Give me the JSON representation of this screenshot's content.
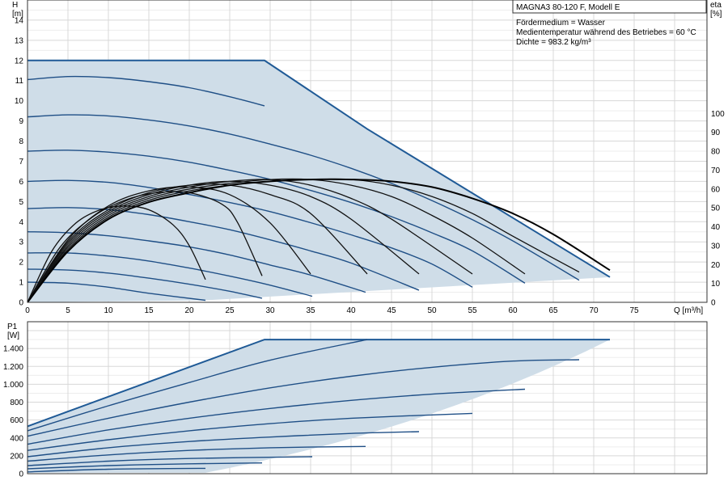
{
  "chart_data": [
    {
      "type": "line",
      "title": "MAGNA3 80-120 F, Modell E",
      "annotations": [
        "Fördermedium = Wasser",
        "Medientemperatur während des Betriebes = 60 °C",
        "Dichte = 983.2 kg/m³"
      ],
      "y_title": "H",
      "y_unit": "[m]",
      "y2_title": "eta",
      "y2_unit": "[%]",
      "x_label": "Q [m³/h]",
      "xlim": [
        0,
        84
      ],
      "ylim": [
        0,
        15
      ],
      "y2lim": [
        0,
        160
      ],
      "xticks": [
        0,
        5,
        10,
        15,
        20,
        25,
        30,
        35,
        40,
        45,
        50,
        55,
        60,
        65,
        70,
        75
      ],
      "yticks": [
        0,
        1,
        2,
        3,
        4,
        5,
        6,
        7,
        8,
        9,
        10,
        11,
        12,
        13,
        14
      ],
      "y2ticks": [
        0,
        10,
        20,
        30,
        40,
        50,
        60,
        70,
        80,
        90,
        100
      ],
      "grid": true,
      "envelope": [
        [
          0,
          12
        ],
        [
          29.3,
          12
        ],
        [
          42,
          8.6
        ],
        [
          72,
          1.25
        ],
        [
          22,
          0.1
        ],
        [
          0,
          0
        ]
      ],
      "series": [
        {
          "x": [
            0,
            5,
            10,
            15,
            22
          ],
          "y": [
            1.0,
            0.95,
            0.75,
            0.45,
            0.1
          ]
        },
        {
          "x": [
            0,
            5,
            10,
            15,
            20,
            25,
            29
          ],
          "y": [
            1.65,
            1.6,
            1.45,
            1.2,
            0.9,
            0.55,
            0.2
          ]
        },
        {
          "x": [
            0,
            5,
            10,
            15,
            20,
            25,
            30,
            35.2
          ],
          "y": [
            2.45,
            2.45,
            2.3,
            2.05,
            1.7,
            1.3,
            0.85,
            0.3
          ]
        },
        {
          "x": [
            0,
            5,
            10,
            15,
            20,
            25,
            30,
            35,
            41.8
          ],
          "y": [
            3.5,
            3.45,
            3.3,
            3.05,
            2.75,
            2.35,
            1.85,
            1.35,
            0.5
          ]
        },
        {
          "x": [
            0,
            5,
            10,
            15,
            20,
            25,
            30,
            35,
            40,
            48.4
          ],
          "y": [
            4.65,
            4.7,
            4.6,
            4.35,
            4.0,
            3.6,
            3.1,
            2.55,
            1.95,
            0.6
          ]
        },
        {
          "x": [
            0,
            5,
            10,
            15,
            20,
            25,
            30,
            35,
            40,
            45,
            50,
            55
          ],
          "y": [
            6.0,
            6.05,
            5.95,
            5.7,
            5.35,
            4.95,
            4.5,
            3.95,
            3.35,
            2.7,
            1.9,
            0.75
          ]
        },
        {
          "x": [
            0,
            5,
            10,
            15,
            20,
            25,
            30,
            35,
            40,
            45,
            50,
            55,
            61.5
          ],
          "y": [
            7.5,
            7.55,
            7.45,
            7.25,
            6.95,
            6.55,
            6.1,
            5.55,
            4.95,
            4.25,
            3.45,
            2.55,
            0.95
          ]
        },
        {
          "x": [
            0,
            5,
            10,
            15,
            20,
            25,
            30,
            35,
            40,
            45,
            50,
            55,
            60,
            68.2
          ],
          "y": [
            9.2,
            9.3,
            9.25,
            9.05,
            8.75,
            8.35,
            7.85,
            7.3,
            6.65,
            5.9,
            5.05,
            4.1,
            3.05,
            1.1
          ]
        },
        {
          "x": [
            0,
            5,
            10,
            15,
            20,
            25,
            29.3
          ],
          "y": [
            11.05,
            11.2,
            11.15,
            10.95,
            10.65,
            10.2,
            9.75
          ]
        }
      ],
      "efficiency_series": [
        {
          "x": [
            0,
            3,
            6,
            9,
            12,
            15,
            18,
            20,
            22
          ],
          "y": [
            0,
            27,
            42,
            49,
            51,
            49,
            41,
            30,
            12
          ]
        },
        {
          "x": [
            0,
            4,
            8,
            12,
            16,
            20,
            24,
            26,
            29
          ],
          "y": [
            0,
            29,
            45,
            54,
            58,
            58,
            52,
            42,
            14
          ]
        },
        {
          "x": [
            0,
            5,
            10,
            15,
            20,
            25,
            30,
            35
          ],
          "y": [
            0,
            33,
            51,
            59,
            61,
            57,
            42,
            15
          ]
        },
        {
          "x": [
            0,
            5,
            10,
            15,
            20,
            25,
            30,
            35,
            42
          ],
          "y": [
            0,
            32,
            49,
            58,
            62,
            62,
            57,
            47,
            15
          ]
        },
        {
          "x": [
            0,
            5,
            10,
            15,
            20,
            25,
            30,
            35,
            40,
            48.4
          ],
          "y": [
            0,
            31,
            48,
            57,
            62,
            64,
            62,
            56,
            44,
            15
          ]
        },
        {
          "x": [
            0,
            5,
            10,
            15,
            20,
            25,
            30,
            35,
            40,
            45,
            55
          ],
          "y": [
            0,
            30,
            47,
            56,
            61,
            64,
            65,
            62,
            55,
            44,
            15
          ]
        },
        {
          "x": [
            0,
            5,
            10,
            15,
            20,
            25,
            30,
            35,
            40,
            45,
            50,
            55,
            61.5
          ],
          "y": [
            0,
            29,
            46,
            55,
            60,
            63,
            65,
            65,
            62,
            56,
            46,
            34,
            15
          ]
        },
        {
          "x": [
            0,
            5,
            10,
            15,
            20,
            25,
            30,
            35,
            40,
            45,
            50,
            55,
            60,
            68.2
          ],
          "y": [
            0,
            28,
            45,
            54,
            59,
            62,
            64,
            65,
            65,
            62,
            56,
            47,
            35,
            16
          ]
        },
        {
          "x": [
            0,
            5,
            10,
            15,
            20,
            25,
            30,
            35,
            40,
            45,
            50,
            55,
            60,
            65,
            72
          ],
          "y": [
            0,
            27,
            44,
            53,
            58,
            62,
            64,
            65,
            65,
            64,
            61,
            55,
            47,
            36,
            17
          ]
        }
      ]
    },
    {
      "type": "line",
      "y_title": "P1",
      "y_unit": "[W]",
      "xlim": [
        0,
        84
      ],
      "ylim": [
        0,
        1700
      ],
      "yticks": [
        0,
        200,
        400,
        600,
        800,
        1000,
        1200,
        1400
      ],
      "ytick_labels": [
        "0",
        "200",
        "400",
        "600",
        "800",
        "1.000",
        "1.200",
        "1.400"
      ],
      "grid": true,
      "envelope": [
        [
          0,
          530
        ],
        [
          29.3,
          1500
        ],
        [
          72,
          1500
        ],
        [
          22,
          10
        ],
        [
          0,
          10
        ]
      ],
      "series": [
        {
          "x": [
            0,
            10,
            22
          ],
          "y": [
            20,
            50,
            60
          ]
        },
        {
          "x": [
            0,
            10,
            20,
            29
          ],
          "y": [
            55,
            90,
            110,
            120
          ]
        },
        {
          "x": [
            0,
            10,
            20,
            35.2
          ],
          "y": [
            90,
            140,
            170,
            190
          ]
        },
        {
          "x": [
            0,
            10,
            20,
            30,
            41.8
          ],
          "y": [
            140,
            210,
            260,
            290,
            305
          ]
        },
        {
          "x": [
            0,
            10,
            20,
            30,
            40,
            48.4
          ],
          "y": [
            190,
            290,
            360,
            410,
            450,
            470
          ]
        },
        {
          "x": [
            0,
            10,
            20,
            30,
            40,
            55
          ],
          "y": [
            260,
            380,
            480,
            560,
            620,
            675
          ]
        },
        {
          "x": [
            0,
            10,
            20,
            30,
            40,
            50,
            61.5
          ],
          "y": [
            330,
            490,
            620,
            730,
            820,
            890,
            945
          ]
        },
        {
          "x": [
            0,
            10,
            20,
            30,
            40,
            50,
            60,
            68.2
          ],
          "y": [
            420,
            620,
            800,
            960,
            1090,
            1190,
            1260,
            1275
          ]
        },
        {
          "x": [
            0,
            10,
            20,
            30,
            42
          ],
          "y": [
            480,
            760,
            1020,
            1270,
            1500
          ]
        }
      ]
    }
  ]
}
